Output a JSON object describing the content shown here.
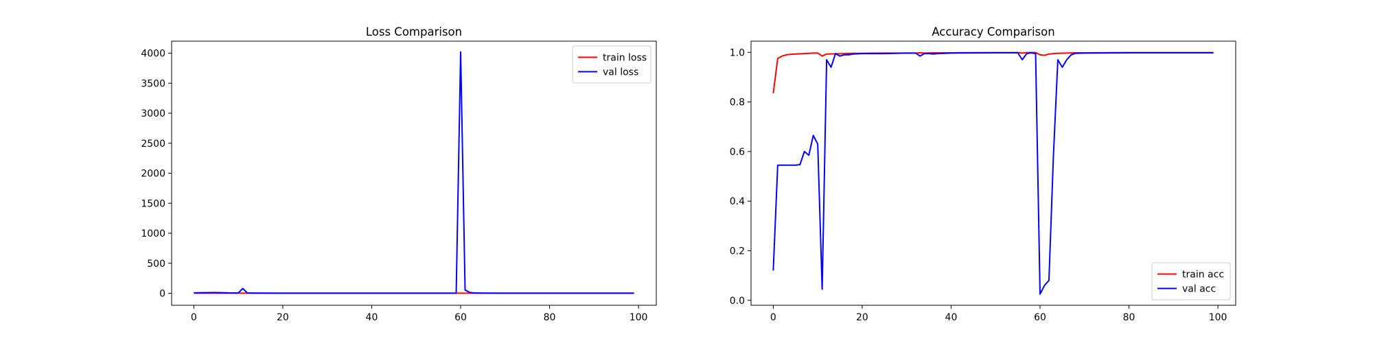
{
  "chart_data": [
    {
      "type": "line",
      "title": "Loss Comparison",
      "xlabel": "",
      "ylabel": "",
      "xlim": [
        -5,
        104
      ],
      "ylim": [
        -200,
        4200
      ],
      "xticks": [
        0,
        20,
        40,
        60,
        80,
        100
      ],
      "yticks": [
        0,
        500,
        1000,
        1500,
        2000,
        2500,
        3000,
        3500,
        4000
      ],
      "grid": false,
      "legend": "top-right",
      "series": [
        {
          "name": "train loss",
          "color": "#ff0000",
          "x": [
            0,
            1,
            2,
            5,
            10,
            20,
            40,
            60,
            80,
            99
          ],
          "y": [
            2,
            1,
            1,
            1,
            1,
            1,
            1,
            1,
            1,
            1
          ]
        },
        {
          "name": "val loss",
          "color": "#0000ff",
          "x": [
            0,
            1,
            2,
            3,
            4,
            5,
            6,
            7,
            8,
            9,
            10,
            11,
            12,
            13,
            14,
            15,
            20,
            30,
            40,
            50,
            58,
            59,
            60,
            61,
            62,
            63,
            64,
            65,
            70,
            80,
            90,
            99
          ],
          "y": [
            5,
            8,
            10,
            10,
            12,
            12,
            10,
            8,
            6,
            5,
            4,
            80,
            6,
            4,
            3,
            3,
            2,
            2,
            2,
            2,
            2,
            2,
            4020,
            55,
            15,
            6,
            4,
            3,
            2,
            2,
            2,
            2
          ]
        }
      ]
    },
    {
      "type": "line",
      "title": "Accuracy Comparison",
      "xlabel": "",
      "ylabel": "",
      "xlim": [
        -5,
        104
      ],
      "ylim": [
        -0.02,
        1.045
      ],
      "xticks": [
        0,
        20,
        40,
        60,
        80,
        100
      ],
      "yticks": [
        0.0,
        0.2,
        0.4,
        0.6,
        0.8,
        1.0
      ],
      "grid": false,
      "legend": "bottom-right",
      "series": [
        {
          "name": "train acc",
          "color": "#ff0000",
          "x": [
            0,
            1,
            2,
            3,
            4,
            5,
            6,
            7,
            8,
            9,
            10,
            11,
            12,
            14,
            16,
            18,
            20,
            25,
            30,
            32,
            33,
            34,
            36,
            40,
            50,
            55,
            56,
            57,
            58,
            59,
            60,
            61,
            62,
            64,
            66,
            68,
            70,
            80,
            90,
            99
          ],
          "y": [
            0.835,
            0.975,
            0.985,
            0.99,
            0.992,
            0.993,
            0.994,
            0.995,
            0.996,
            0.997,
            0.997,
            0.985,
            0.993,
            0.994,
            0.995,
            0.996,
            0.996,
            0.997,
            0.997,
            0.997,
            0.998,
            0.997,
            0.998,
            0.998,
            0.999,
            0.999,
            0.997,
            0.999,
            0.999,
            0.999,
            0.99,
            0.988,
            0.993,
            0.996,
            0.997,
            0.998,
            0.998,
            0.999,
            0.999,
            0.999
          ]
        },
        {
          "name": "val acc",
          "color": "#0000ff",
          "x": [
            0,
            1,
            2,
            3,
            4,
            5,
            6,
            7,
            8,
            9,
            10,
            11,
            12,
            13,
            14,
            15,
            16,
            17,
            18,
            20,
            25,
            30,
            32,
            33,
            34,
            35,
            36,
            37,
            40,
            50,
            55,
            56,
            57,
            58,
            59,
            60,
            61,
            62,
            63,
            64,
            65,
            66,
            67,
            68,
            70,
            80,
            90,
            99
          ],
          "y": [
            0.12,
            0.545,
            0.545,
            0.545,
            0.545,
            0.545,
            0.547,
            0.6,
            0.585,
            0.665,
            0.63,
            0.045,
            0.97,
            0.94,
            0.995,
            0.985,
            0.99,
            0.99,
            0.993,
            0.995,
            0.995,
            0.997,
            0.997,
            0.985,
            0.995,
            0.995,
            0.993,
            0.995,
            0.997,
            0.998,
            0.998,
            0.97,
            0.995,
            0.998,
            0.995,
            0.025,
            0.06,
            0.08,
            0.58,
            0.97,
            0.94,
            0.97,
            0.99,
            0.996,
            0.997,
            0.998,
            0.998,
            0.998
          ]
        }
      ]
    }
  ]
}
